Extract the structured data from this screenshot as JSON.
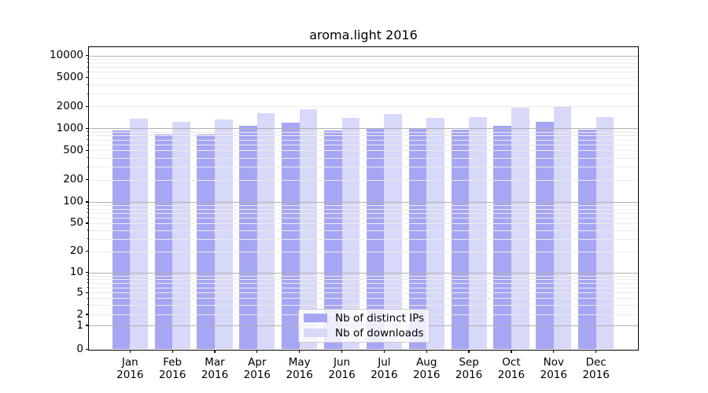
{
  "chart_data": {
    "type": "bar",
    "title": "aroma.light 2016",
    "xlabel": "",
    "ylabel": "",
    "year_label": "2016",
    "months": [
      "Jan",
      "Feb",
      "Mar",
      "Apr",
      "May",
      "Jun",
      "Jul",
      "Aug",
      "Sep",
      "Oct",
      "Nov",
      "Dec"
    ],
    "series": [
      {
        "name": "Nb of distinct IPs",
        "color": "#a6a6f4",
        "values": [
          940,
          830,
          830,
          1080,
          1210,
          940,
          1000,
          1010,
          960,
          1090,
          1220,
          960
        ]
      },
      {
        "name": "Nb of downloads",
        "color": "#d8d8f8",
        "values": [
          1360,
          1240,
          1320,
          1600,
          1810,
          1400,
          1570,
          1390,
          1440,
          1900,
          1990,
          1410
        ]
      }
    ],
    "y_ticks": [
      0,
      1,
      2,
      5,
      10,
      20,
      50,
      100,
      200,
      500,
      1000,
      2000,
      5000,
      10000
    ],
    "y_scale": "symlog",
    "ylim": [
      0,
      13000
    ],
    "grid": true,
    "legend_position": "lower center"
  },
  "colors": {
    "distinct_ips_bar": "#a6a6f4",
    "downloads_bar": "#d8d8f8",
    "grid_major": "#b1b1b1",
    "grid_minor": "#ebebeb",
    "axis": "#000000",
    "background": "#ffffff"
  }
}
